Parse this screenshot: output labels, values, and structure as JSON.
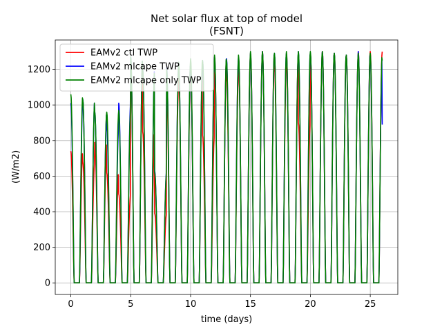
{
  "chart_data": {
    "type": "line",
    "title": "Net solar flux at top of model",
    "subtitle": "(FSNT)",
    "xlabel": "time (days)",
    "ylabel": "(W/m2)",
    "xlim": [
      -1.3,
      27.3
    ],
    "ylim": [
      -65,
      1365
    ],
    "xticks": [
      0,
      5,
      10,
      15,
      20,
      25
    ],
    "yticks": [
      0,
      200,
      400,
      600,
      800,
      1000,
      1200
    ],
    "grid": true,
    "legend_position": "top-left",
    "sample_step_days": 0.125,
    "x_start": 0,
    "x_end": 26,
    "daily_peaks": {
      "days": [
        0,
        1,
        2,
        3,
        4,
        5,
        6,
        7,
        8,
        9,
        10,
        11,
        12,
        13,
        14,
        15,
        16,
        17,
        18,
        19,
        20,
        21,
        22,
        23,
        24,
        25,
        26
      ],
      "comment_units": "W/m2"
    },
    "series": [
      {
        "name": "EAMv2 ctl TWP",
        "color": "#ff0000",
        "peaks": [
          740,
          680,
          790,
          620,
          500,
          1240,
          850,
          390,
          1100,
          1190,
          1210,
          830,
          1270,
          1150,
          1270,
          1290,
          1300,
          1210,
          1290,
          900,
          1290,
          1300,
          1290,
          1280,
          1300,
          1300,
          1300
        ],
        "mins": [
          0,
          0,
          0,
          0,
          0,
          0,
          0,
          0,
          0,
          0,
          0,
          0,
          0,
          0,
          0,
          0,
          0,
          0,
          0,
          0,
          0,
          0,
          0,
          0,
          0,
          0,
          0
        ]
      },
      {
        "name": "EAMv2 mlcape TWP",
        "color": "#0000ff",
        "peaks": [
          1010,
          1030,
          960,
          870,
          1010,
          1270,
          1210,
          630,
          1210,
          1240,
          1210,
          1250,
          1270,
          1260,
          1270,
          1290,
          1300,
          1290,
          1290,
          1300,
          1290,
          1300,
          1290,
          1280,
          1300,
          1280,
          890
        ],
        "mins": [
          0,
          0,
          0,
          0,
          0,
          0,
          0,
          0,
          0,
          0,
          0,
          0,
          0,
          0,
          0,
          0,
          0,
          0,
          0,
          0,
          0,
          0,
          0,
          0,
          0,
          0,
          0
        ]
      },
      {
        "name": "EAMv2 mlcape only TWP",
        "color": "#008000",
        "peaks": [
          1060,
          1030,
          960,
          960,
          970,
          1270,
          1200,
          620,
          1200,
          1240,
          1260,
          1250,
          1280,
          1250,
          1280,
          1300,
          1300,
          1290,
          1300,
          1300,
          1300,
          1300,
          1290,
          1280,
          1290,
          1290,
          1250
        ],
        "mins": [
          0,
          0,
          0,
          0,
          0,
          0,
          0,
          0,
          0,
          0,
          0,
          0,
          0,
          0,
          0,
          0,
          0,
          0,
          0,
          0,
          0,
          0,
          0,
          0,
          0,
          0,
          0
        ]
      }
    ]
  }
}
